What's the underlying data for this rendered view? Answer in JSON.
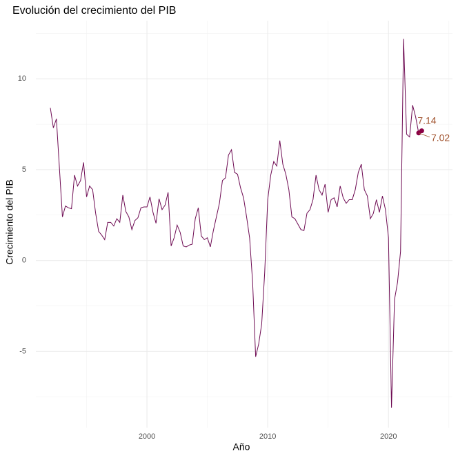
{
  "chart_data": {
    "type": "line",
    "title": "Evolución del crecimiento del PIB",
    "xlabel": "Año",
    "ylabel": "Crecimiento del PIB",
    "x": [
      1992,
      1992.25,
      1992.5,
      1992.75,
      1993,
      1993.25,
      1993.5,
      1993.75,
      1994,
      1994.25,
      1994.5,
      1994.75,
      1995,
      1995.25,
      1995.5,
      1995.75,
      1996,
      1996.25,
      1996.5,
      1996.75,
      1997,
      1997.25,
      1997.5,
      1997.75,
      1998,
      1998.25,
      1998.5,
      1998.75,
      1999,
      1999.25,
      1999.5,
      1999.75,
      2000,
      2000.25,
      2000.5,
      2000.75,
      2001,
      2001.25,
      2001.5,
      2001.75,
      2002,
      2002.25,
      2002.5,
      2002.75,
      2003,
      2003.25,
      2003.5,
      2003.75,
      2004,
      2004.25,
      2004.5,
      2004.75,
      2005,
      2005.25,
      2005.5,
      2005.75,
      2006,
      2006.25,
      2006.5,
      2006.75,
      2007,
      2007.25,
      2007.5,
      2007.75,
      2008,
      2008.25,
      2008.5,
      2008.75,
      2009,
      2009.25,
      2009.5,
      2009.75,
      2010,
      2010.25,
      2010.5,
      2010.75,
      2011,
      2011.25,
      2011.5,
      2011.75,
      2012,
      2012.25,
      2012.5,
      2012.75,
      2013,
      2013.25,
      2013.5,
      2013.75,
      2014,
      2014.25,
      2014.5,
      2014.75,
      2015,
      2015.25,
      2015.5,
      2015.75,
      2016,
      2016.25,
      2016.5,
      2016.75,
      2017,
      2017.25,
      2017.5,
      2017.75,
      2018,
      2018.25,
      2018.5,
      2018.75,
      2019,
      2019.25,
      2019.5,
      2019.75,
      2020,
      2020.25,
      2020.5,
      2020.75,
      2021,
      2021.25,
      2021.5,
      2021.75,
      2022,
      2022.25,
      2022.5,
      2022.75
    ],
    "values": [
      8.4,
      7.3,
      7.8,
      5.1,
      2.4,
      3.0,
      2.9,
      2.85,
      4.7,
      4.1,
      4.4,
      5.4,
      3.5,
      4.1,
      3.9,
      2.6,
      1.6,
      1.4,
      1.15,
      2.1,
      2.1,
      1.9,
      2.3,
      2.1,
      3.6,
      2.7,
      2.4,
      1.7,
      2.2,
      2.35,
      2.9,
      2.95,
      2.95,
      3.5,
      2.65,
      2.05,
      3.4,
      2.8,
      3.05,
      3.75,
      0.8,
      1.25,
      1.95,
      1.55,
      0.8,
      0.75,
      0.85,
      0.9,
      2.3,
      2.9,
      1.35,
      1.15,
      1.25,
      0.75,
      1.65,
      2.4,
      3.15,
      4.4,
      4.55,
      5.8,
      6.1,
      4.85,
      4.75,
      4.0,
      3.45,
      2.4,
      1.25,
      -1.2,
      -5.3,
      -4.6,
      -3.5,
      -0.65,
      3.35,
      4.7,
      5.45,
      5.2,
      6.6,
      5.3,
      4.75,
      3.9,
      2.4,
      2.3,
      2.0,
      1.7,
      1.65,
      2.6,
      2.8,
      3.35,
      4.7,
      3.9,
      3.6,
      4.2,
      2.65,
      3.35,
      3.45,
      2.95,
      4.1,
      3.45,
      3.15,
      3.35,
      3.35,
      3.9,
      4.85,
      5.3,
      3.9,
      3.55,
      2.3,
      2.6,
      3.35,
      2.65,
      3.55,
      2.8,
      1.25,
      -8.1,
      -2.15,
      -1.2,
      0.5,
      12.2,
      6.95,
      6.8,
      8.55,
      7.9,
      7.02,
      7.14
    ],
    "color": "#6d0a52",
    "xlim": [
      1990.8,
      2025.3
    ],
    "xticks": [
      2000,
      2010,
      2020
    ],
    "ylim": [
      -9.2,
      13.2
    ],
    "yticks": [
      -5,
      0,
      5,
      10
    ],
    "grid": true
  }
}
